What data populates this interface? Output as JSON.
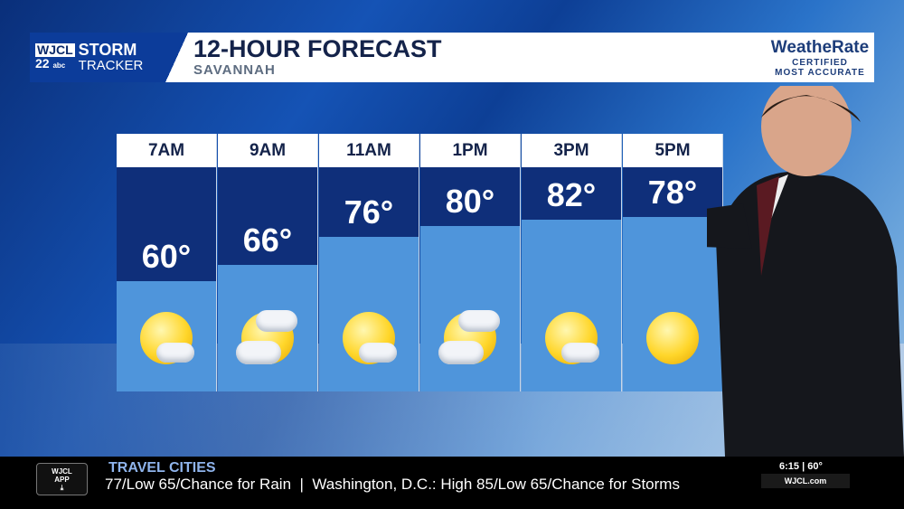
{
  "header": {
    "station_call": "WJCL",
    "station_number": "22",
    "network": "abc",
    "brand_line1": "STORM",
    "brand_line2": "TRACKER",
    "title": "12-HOUR FORECAST",
    "location": "SAVANNAH",
    "sponsor_name": "WeatheRate",
    "sponsor_line1": "CERTIFIED",
    "sponsor_line2": "MOST ACCURATE"
  },
  "forecast": [
    {
      "time": "7AM",
      "temp": "60°",
      "condition": "mostly-sunny",
      "icon": "sun-small-cloud-icon"
    },
    {
      "time": "9AM",
      "temp": "66°",
      "condition": "partly-cloudy",
      "icon": "partly-cloudy-icon"
    },
    {
      "time": "11AM",
      "temp": "76°",
      "condition": "mostly-sunny",
      "icon": "sun-small-cloud-icon"
    },
    {
      "time": "1PM",
      "temp": "80°",
      "condition": "partly-cloudy",
      "icon": "partly-cloudy-icon"
    },
    {
      "time": "3PM",
      "temp": "82°",
      "condition": "mostly-sunny",
      "icon": "sun-small-cloud-icon"
    },
    {
      "time": "5PM",
      "temp": "78°",
      "condition": "sunny",
      "icon": "sun-icon"
    }
  ],
  "ticker": {
    "app_line1": "WJCL",
    "app_line2": "APP",
    "category": "TRAVEL CITIES",
    "text": "77/Low 65/Chance for Rain  |  Washington, D.C.: High 85/Low 65/Chance for Storms",
    "time": "6:15",
    "current_temp": "60°",
    "website": "WJCL.com"
  },
  "colors": {
    "band_dark": "#0f2f7a",
    "band_light": "#4f95db",
    "brand_blue": "#0c3c9a"
  }
}
